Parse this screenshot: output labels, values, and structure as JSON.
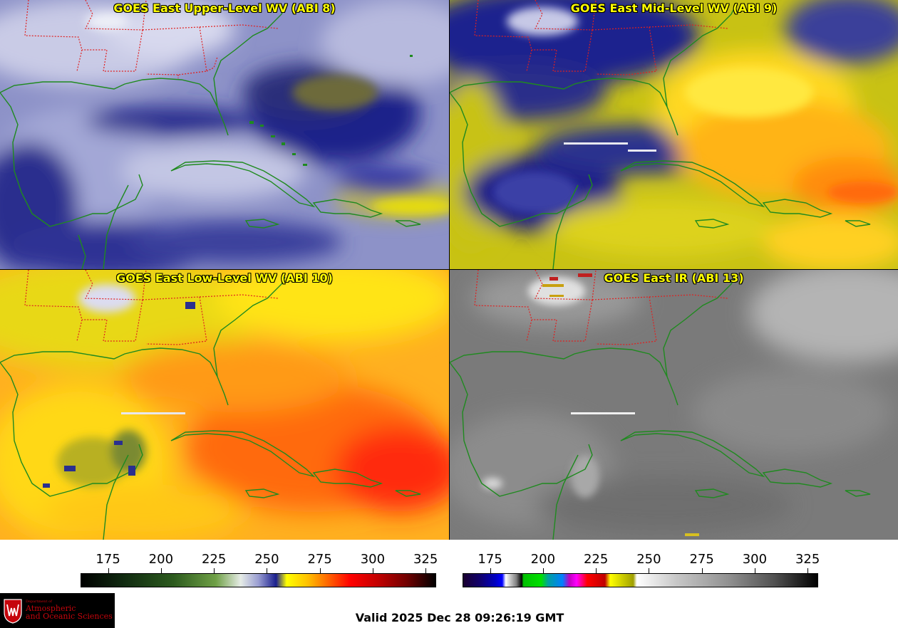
{
  "panels": [
    {
      "id": "upper",
      "title": "GOES East Upper-Level WV (ABI 8)"
    },
    {
      "id": "mid",
      "title": "GOES East Mid-Level WV (ABI 9)"
    },
    {
      "id": "low",
      "title": "GOES East Low-Level WV (ABI 10)"
    },
    {
      "id": "ir",
      "title": "GOES East IR (ABI 13)"
    }
  ],
  "colorbars": {
    "water_vapor": {
      "ticks": [
        "175",
        "200",
        "225",
        "250",
        "275",
        "300",
        "325"
      ],
      "range": [
        162,
        330
      ]
    },
    "infrared": {
      "ticks": [
        "175",
        "200",
        "225",
        "250",
        "275",
        "300",
        "325"
      ],
      "range": [
        162,
        330
      ]
    }
  },
  "colors": {
    "state_borders": "#e02020",
    "coastline": "#1f8a1f",
    "title_text": "#ffff00"
  },
  "logo": {
    "department": "Department of",
    "name_line1": "Atmospheric",
    "name_line2": "and Oceanic Sciences"
  },
  "valid_time": "Valid 2025 Dec 28 09:26:19 GMT"
}
